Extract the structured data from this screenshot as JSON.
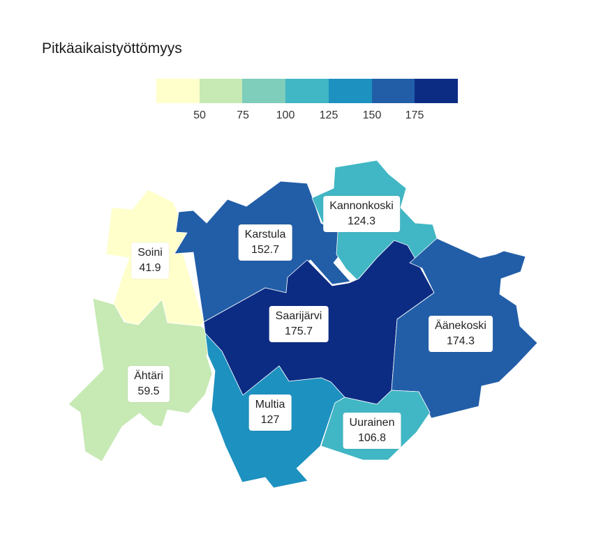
{
  "title": "Pitkäaikaistyöttömyys",
  "legend": {
    "colors": [
      "#ffffcc",
      "#c7e9b4",
      "#7fcdbb",
      "#41b6c4",
      "#1d91c0",
      "#225ea8",
      "#0c2c84"
    ],
    "ticks": [
      "50",
      "75",
      "100",
      "125",
      "150",
      "175"
    ]
  },
  "regions": [
    {
      "name": "Soini",
      "value": "41.9",
      "color": "#ffffcc"
    },
    {
      "name": "Ähtäri",
      "value": "59.5",
      "color": "#c7e9b4"
    },
    {
      "name": "Karstula",
      "value": "152.7",
      "color": "#225ea8"
    },
    {
      "name": "Kannonkoski",
      "value": "124.3",
      "color": "#41b6c4"
    },
    {
      "name": "Saarijärvi",
      "value": "175.7",
      "color": "#0c2c84"
    },
    {
      "name": "Äänekoski",
      "value": "174.3",
      "color": "#225ea8"
    },
    {
      "name": "Multia",
      "value": "127",
      "color": "#1d91c0"
    },
    {
      "name": "Uurainen",
      "value": "106.8",
      "color": "#41b6c4"
    }
  ]
}
